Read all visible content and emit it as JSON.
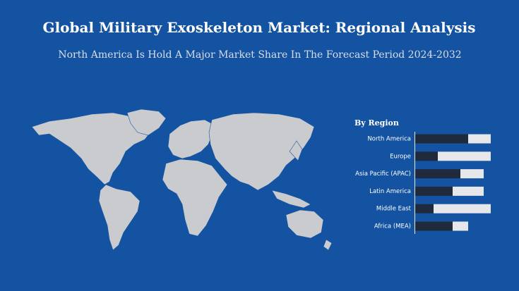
{
  "chart_data": {
    "type": "bar",
    "orientation": "horizontal",
    "stacked": true,
    "title": "Global Military Exoskeleton Market: Regional Analysis",
    "subtitle": "North America Is Hold A Major Market Share In The Forecast Period 2024-2032",
    "panel_title": "By Region",
    "categories": [
      "North America",
      "Europe",
      "Asia Pacific (APAC)",
      "Latin America",
      "Middle East",
      "Africa (MEA)"
    ],
    "series": [
      {
        "color": "#1f2b3d",
        "values": [
          75,
          32,
          64,
          53,
          26,
          53
        ]
      },
      {
        "color": "#e6e7ea",
        "values": [
          32,
          75,
          33,
          44,
          81,
          22
        ]
      }
    ]
  }
}
